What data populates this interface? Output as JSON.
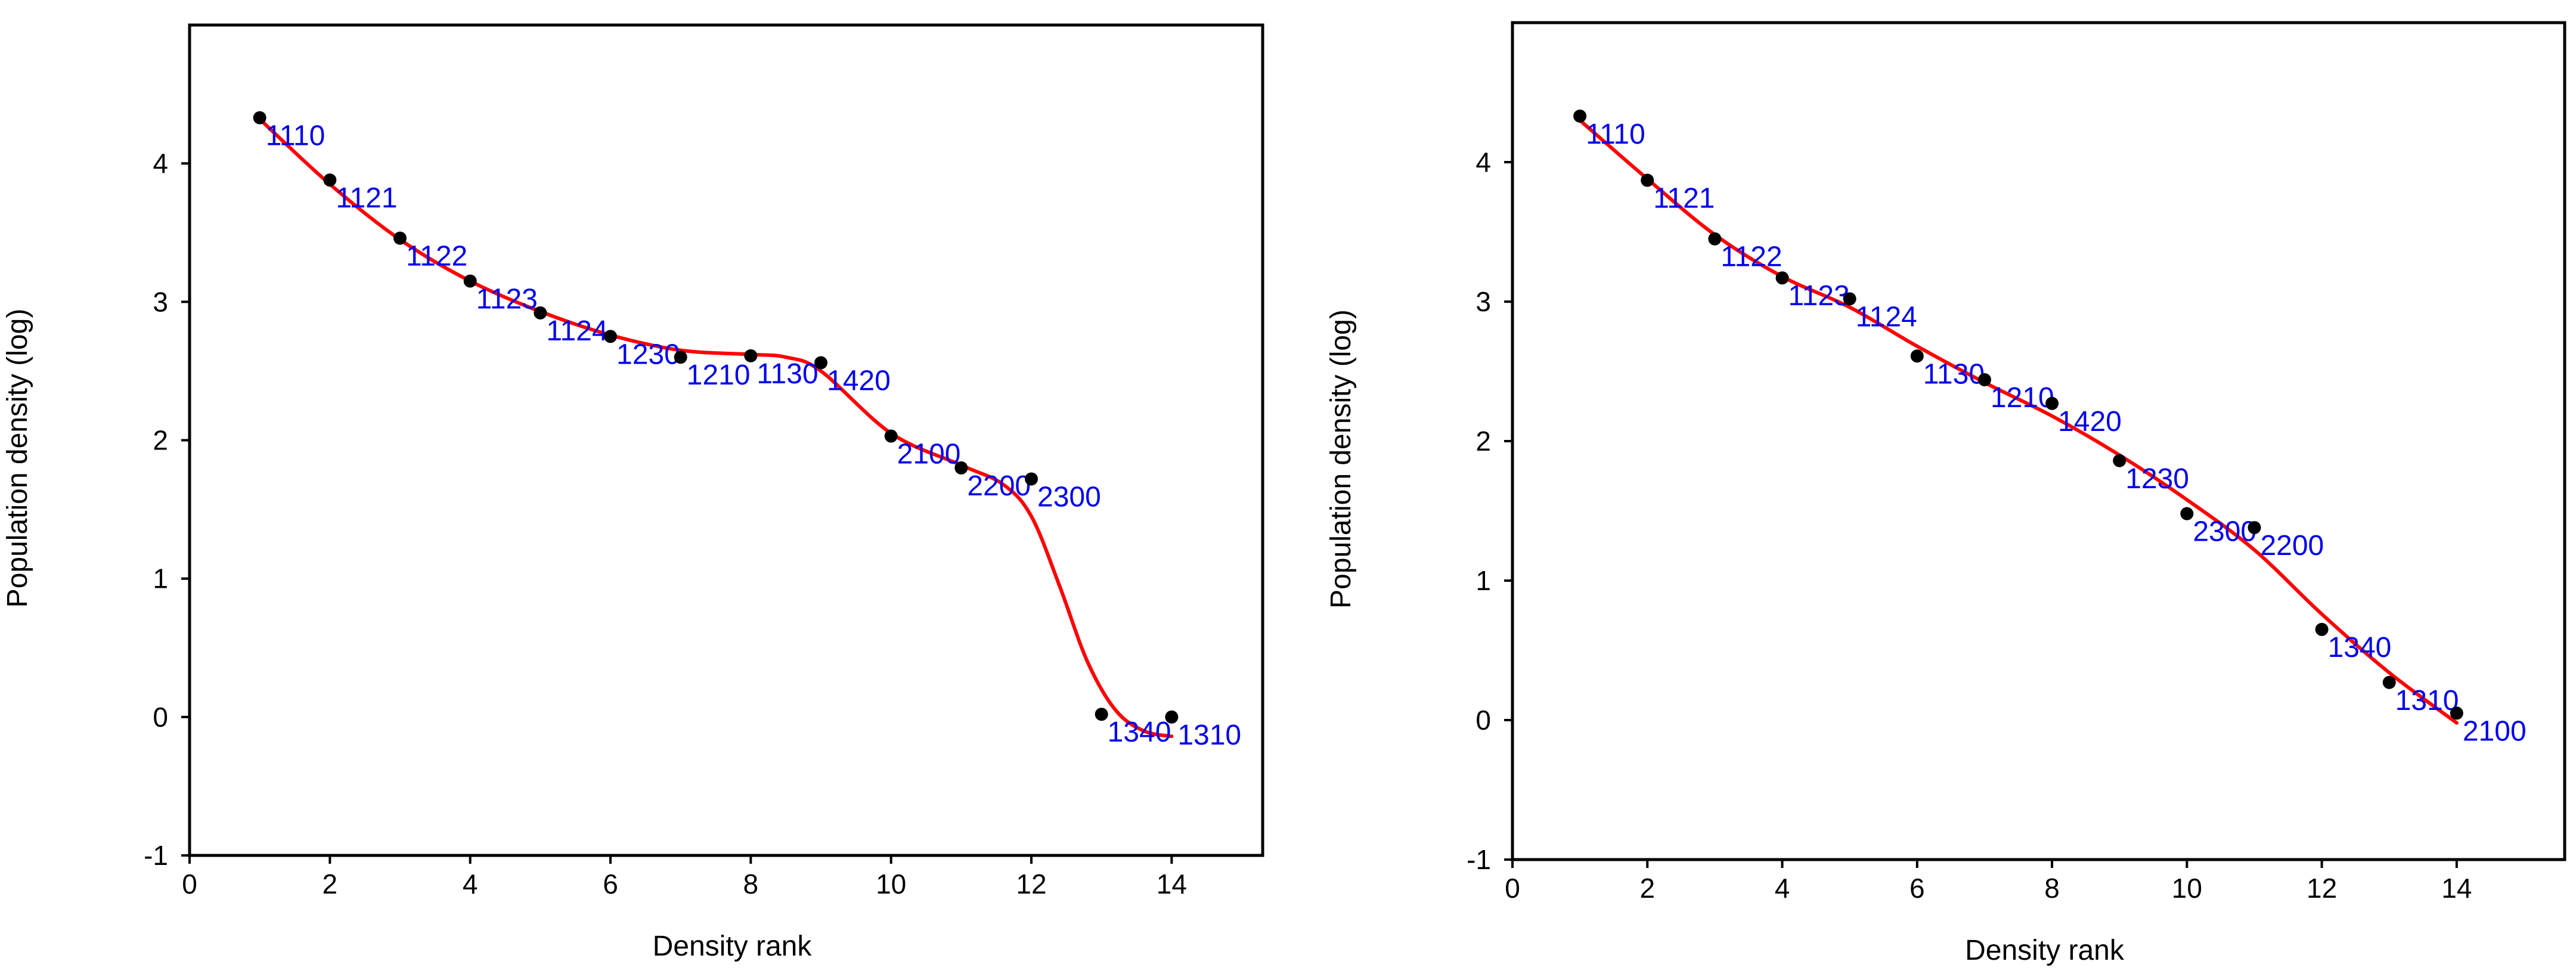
{
  "chart_data": [
    {
      "type": "scatter",
      "xlabel": "Density rank",
      "ylabel": "Population density (log)",
      "xlim": [
        0,
        15
      ],
      "ylim": [
        -1,
        5
      ],
      "xticks": [
        "0",
        "2",
        "4",
        "6",
        "8",
        "10",
        "12",
        "14"
      ],
      "yticks": [
        "-1",
        "0",
        "1",
        "2",
        "3",
        "4"
      ],
      "fit_line_color": "#ff0000",
      "point_color": "#000000",
      "label_color": "#0000ee",
      "points": [
        {
          "x": 1,
          "y": 4.33,
          "label": "1110"
        },
        {
          "x": 2,
          "y": 3.88,
          "label": "1121"
        },
        {
          "x": 3,
          "y": 3.46,
          "label": "1122"
        },
        {
          "x": 4,
          "y": 3.15,
          "label": "1123"
        },
        {
          "x": 5,
          "y": 2.92,
          "label": "1124"
        },
        {
          "x": 6,
          "y": 2.75,
          "label": "1230"
        },
        {
          "x": 7,
          "y": 2.6,
          "label": "1210"
        },
        {
          "x": 8,
          "y": 2.61,
          "label": "1130"
        },
        {
          "x": 9,
          "y": 2.56,
          "label": "1420"
        },
        {
          "x": 10,
          "y": 2.03,
          "label": "2100"
        },
        {
          "x": 11,
          "y": 1.8,
          "label": "2200"
        },
        {
          "x": 12,
          "y": 1.72,
          "label": "2300"
        },
        {
          "x": 13,
          "y": 0.02,
          "label": "1340"
        },
        {
          "x": 14,
          "y": 0.0,
          "label": "1310"
        }
      ],
      "fit_curve": [
        [
          1,
          4.32
        ],
        [
          2,
          3.85
        ],
        [
          3,
          3.45
        ],
        [
          4,
          3.15
        ],
        [
          5,
          2.93
        ],
        [
          6,
          2.76
        ],
        [
          7,
          2.65
        ],
        [
          8,
          2.62
        ],
        [
          8.5,
          2.6
        ],
        [
          9,
          2.5
        ],
        [
          10,
          2.05
        ],
        [
          11,
          1.82
        ],
        [
          11.6,
          1.68
        ],
        [
          12,
          1.45
        ],
        [
          12.4,
          0.95
        ],
        [
          12.8,
          0.4
        ],
        [
          13.2,
          0.05
        ],
        [
          13.6,
          -0.1
        ],
        [
          14,
          -0.14
        ]
      ]
    },
    {
      "type": "scatter",
      "xlabel": "Density rank",
      "ylabel": "Population density (log)",
      "xlim": [
        0,
        15
      ],
      "ylim": [
        -1,
        5
      ],
      "xticks": [
        "0",
        "2",
        "4",
        "6",
        "8",
        "10",
        "12",
        "14"
      ],
      "yticks": [
        "-1",
        "0",
        "1",
        "2",
        "3",
        "4"
      ],
      "fit_line_color": "#ff0000",
      "point_color": "#000000",
      "label_color": "#0000ee",
      "points": [
        {
          "x": 1,
          "y": 4.33,
          "label": "1110"
        },
        {
          "x": 2,
          "y": 3.87,
          "label": "1121"
        },
        {
          "x": 3,
          "y": 3.45,
          "label": "1122"
        },
        {
          "x": 4,
          "y": 3.17,
          "label": "1123"
        },
        {
          "x": 5,
          "y": 3.02,
          "label": "1124"
        },
        {
          "x": 6,
          "y": 2.61,
          "label": "1130"
        },
        {
          "x": 7,
          "y": 2.44,
          "label": "1210"
        },
        {
          "x": 8,
          "y": 2.27,
          "label": "1420"
        },
        {
          "x": 9,
          "y": 1.86,
          "label": "1230"
        },
        {
          "x": 10,
          "y": 1.48,
          "label": "2300"
        },
        {
          "x": 11,
          "y": 1.38,
          "label": "2200"
        },
        {
          "x": 12,
          "y": 0.65,
          "label": "1340"
        },
        {
          "x": 13,
          "y": 0.27,
          "label": "1310"
        },
        {
          "x": 14,
          "y": 0.05,
          "label": "2100"
        }
      ],
      "fit_curve": [
        [
          1,
          4.3
        ],
        [
          2,
          3.88
        ],
        [
          3,
          3.48
        ],
        [
          4,
          3.18
        ],
        [
          5,
          2.96
        ],
        [
          6,
          2.68
        ],
        [
          7,
          2.42
        ],
        [
          8,
          2.18
        ],
        [
          9,
          1.9
        ],
        [
          10,
          1.58
        ],
        [
          11,
          1.22
        ],
        [
          12,
          0.76
        ],
        [
          13,
          0.34
        ],
        [
          14,
          -0.02
        ]
      ]
    }
  ]
}
